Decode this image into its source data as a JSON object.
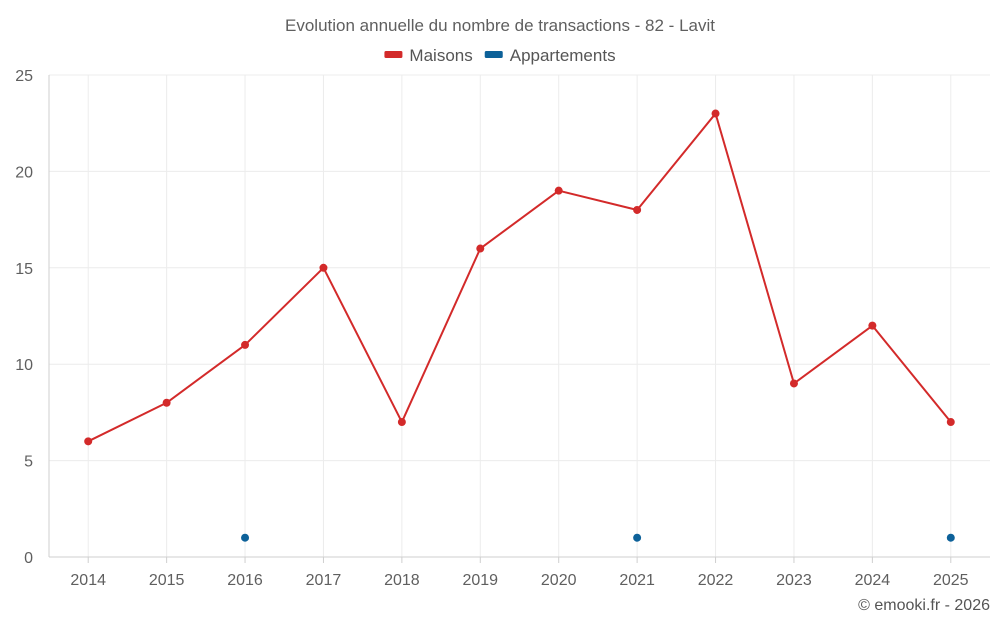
{
  "chart_data": {
    "type": "line",
    "title": "Evolution annuelle du nombre de transactions - 82 - Lavit",
    "categories": [
      "2014",
      "2015",
      "2016",
      "2017",
      "2018",
      "2019",
      "2020",
      "2021",
      "2022",
      "2023",
      "2024",
      "2025"
    ],
    "series": [
      {
        "name": "Maisons",
        "color": "#d32a2a",
        "line": true,
        "values": [
          6,
          8,
          11,
          15,
          7,
          16,
          19,
          18,
          23,
          9,
          12,
          7
        ]
      },
      {
        "name": "Appartements",
        "color": "#0d6199",
        "line": false,
        "values": [
          null,
          null,
          1,
          null,
          null,
          null,
          null,
          1,
          null,
          null,
          null,
          1
        ]
      }
    ],
    "y_ticks": [
      "0",
      "5",
      "10",
      "15",
      "20",
      "25"
    ],
    "ylim": [
      0,
      25
    ],
    "xlabel": "",
    "ylabel": "",
    "grid": true,
    "legend_position": "top-center"
  },
  "credit": "© emooki.fr - 2026"
}
